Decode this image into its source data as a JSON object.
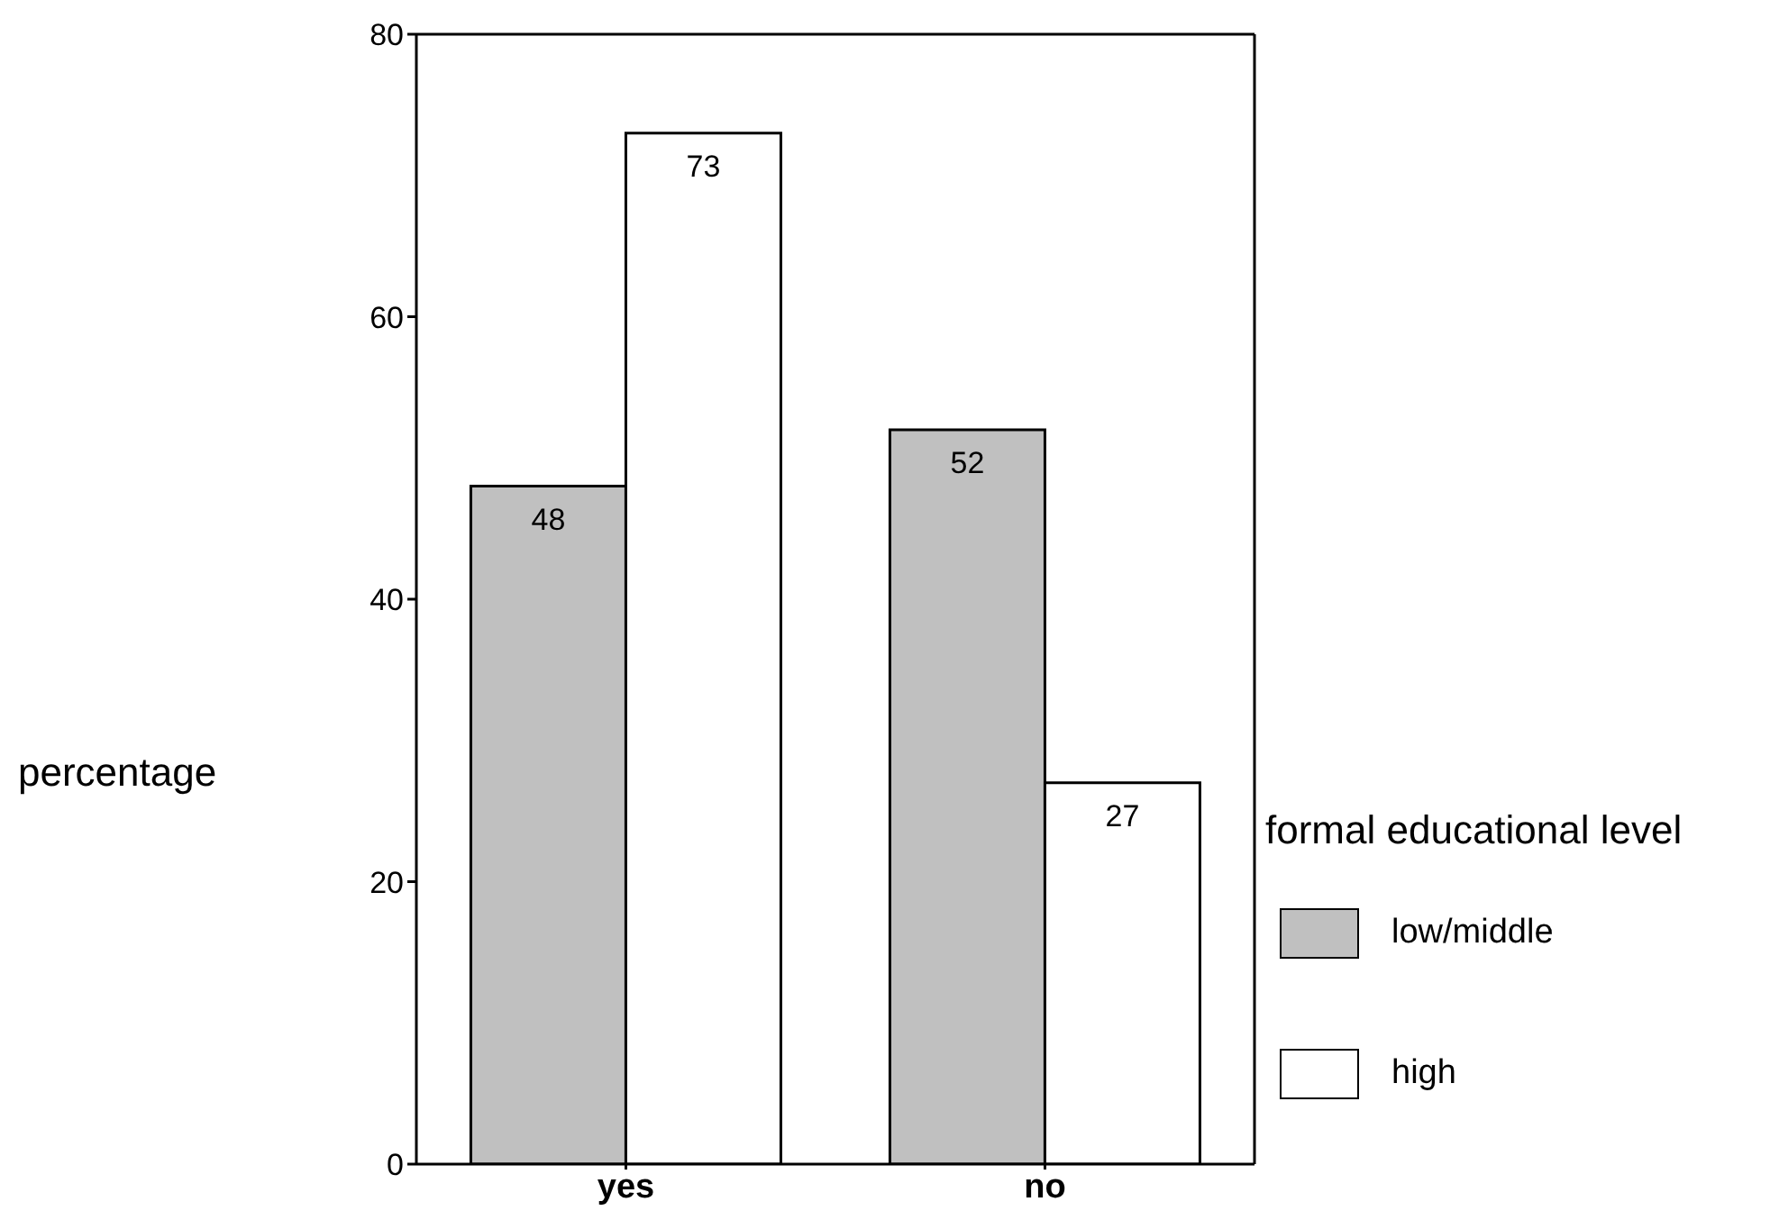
{
  "chart_data": {
    "type": "bar",
    "ylabel": "percentage",
    "legend_title": "formal educational level",
    "categories": [
      "yes",
      "no"
    ],
    "series": [
      {
        "name": "low/middle",
        "color": "#c0c0c0",
        "values": [
          48,
          52
        ]
      },
      {
        "name": "high",
        "color": "#ffffff",
        "values": [
          73,
          27
        ]
      }
    ],
    "ylim": [
      0,
      80
    ],
    "yticks": [
      0,
      20,
      40,
      60,
      80
    ],
    "data_labels": true,
    "legend": "right",
    "grid": false
  }
}
